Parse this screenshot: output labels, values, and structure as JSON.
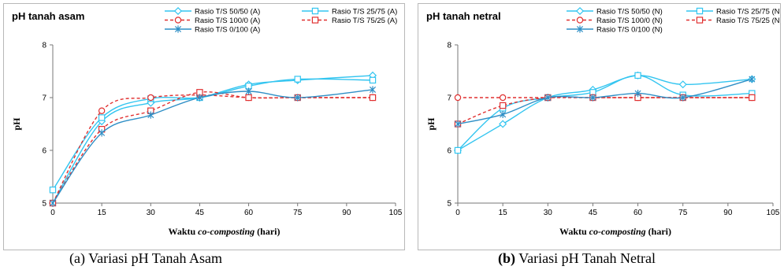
{
  "chart_data": [
    {
      "type": "line",
      "title": "pH tanah asam",
      "caption": "(a) Variasi pH Tanah Asam",
      "xlabel": "Waktu co-composting (hari)",
      "ylabel": "pH",
      "xlim": [
        0,
        105
      ],
      "ylim": [
        5,
        8
      ],
      "xticks": [
        "0",
        "15",
        "30",
        "45",
        "60",
        "75",
        "90",
        "105"
      ],
      "yticks": [
        "5",
        "6",
        "7",
        "8"
      ],
      "grid": false,
      "legend": "top-right",
      "series": [
        {
          "name": "Rasio T/S 50/50 (A)",
          "color": "#33c5f0",
          "dash": false,
          "marker": "diamond",
          "points": [
            [
              0,
              5.0
            ],
            [
              15,
              6.55
            ],
            [
              30,
              6.9
            ],
            [
              45,
              7.0
            ],
            [
              60,
              7.25
            ],
            [
              75,
              7.33
            ],
            [
              98,
              7.42
            ]
          ]
        },
        {
          "name": "Rasio T/S 25/75 (A)",
          "color": "#33c5f0",
          "dash": false,
          "marker": "square",
          "points": [
            [
              0,
              5.25
            ],
            [
              15,
              6.62
            ],
            [
              30,
              6.98
            ],
            [
              45,
              7.0
            ],
            [
              60,
              7.22
            ],
            [
              75,
              7.35
            ],
            [
              98,
              7.33
            ]
          ]
        },
        {
          "name": "Rasio T/S 100/0 (A)",
          "color": "#e03030",
          "dash": true,
          "marker": "circle",
          "points": [
            [
              0,
              5.0
            ],
            [
              15,
              6.75
            ],
            [
              30,
              7.0
            ],
            [
              45,
              7.05
            ],
            [
              60,
              7.0
            ],
            [
              75,
              7.0
            ],
            [
              98,
              7.0
            ]
          ]
        },
        {
          "name": "Rasio T/S 75/25 (A)",
          "color": "#e03030",
          "dash": true,
          "marker": "square",
          "points": [
            [
              0,
              5.0
            ],
            [
              15,
              6.4
            ],
            [
              30,
              6.75
            ],
            [
              45,
              7.1
            ],
            [
              60,
              7.0
            ],
            [
              75,
              7.0
            ],
            [
              98,
              7.0
            ]
          ]
        },
        {
          "name": "Rasio T/S 0/100 (A)",
          "color": "#2f8fc6",
          "dash": false,
          "marker": "star",
          "points": [
            [
              0,
              5.0
            ],
            [
              15,
              6.33
            ],
            [
              30,
              6.67
            ],
            [
              45,
              7.0
            ],
            [
              60,
              7.12
            ],
            [
              75,
              7.0
            ],
            [
              98,
              7.15
            ]
          ]
        }
      ]
    },
    {
      "type": "line",
      "title": "pH tanah netral",
      "caption": "(b) Variasi pH Tanah Netral",
      "xlabel": "Waktu co-composting (hari)",
      "ylabel": "pH",
      "xlim": [
        0,
        105
      ],
      "ylim": [
        5,
        8
      ],
      "xticks": [
        "0",
        "15",
        "30",
        "45",
        "60",
        "75",
        "90",
        "105"
      ],
      "yticks": [
        "5",
        "6",
        "7",
        "8"
      ],
      "grid": false,
      "legend": "top-right",
      "series": [
        {
          "name": "Rasio T/S 50/50 (N)",
          "color": "#33c5f0",
          "dash": false,
          "marker": "diamond",
          "points": [
            [
              0,
              6.0
            ],
            [
              15,
              6.5
            ],
            [
              30,
              7.0
            ],
            [
              45,
              7.15
            ],
            [
              60,
              7.42
            ],
            [
              75,
              7.25
            ],
            [
              98,
              7.35
            ]
          ]
        },
        {
          "name": "Rasio T/S 25/75 (N)",
          "color": "#33c5f0",
          "dash": false,
          "marker": "square",
          "points": [
            [
              0,
              6.0
            ],
            [
              15,
              6.8
            ],
            [
              30,
              7.0
            ],
            [
              45,
              7.1
            ],
            [
              60,
              7.42
            ],
            [
              75,
              7.05
            ],
            [
              98,
              7.08
            ]
          ]
        },
        {
          "name": "Rasio T/S 100/0 (N)",
          "color": "#e03030",
          "dash": true,
          "marker": "circle",
          "points": [
            [
              0,
              7.0
            ],
            [
              15,
              7.0
            ],
            [
              30,
              7.0
            ],
            [
              45,
              7.0
            ],
            [
              60,
              7.0
            ],
            [
              75,
              7.0
            ],
            [
              98,
              7.0
            ]
          ]
        },
        {
          "name": "Rasio T/S 75/25 (N)",
          "color": "#e03030",
          "dash": true,
          "marker": "square",
          "points": [
            [
              0,
              6.5
            ],
            [
              15,
              6.85
            ],
            [
              30,
              7.0
            ],
            [
              45,
              7.0
            ],
            [
              60,
              7.0
            ],
            [
              75,
              7.0
            ],
            [
              98,
              7.0
            ]
          ]
        },
        {
          "name": "Rasio T/S 0/100 (N)",
          "color": "#2f8fc6",
          "dash": false,
          "marker": "star",
          "points": [
            [
              0,
              6.5
            ],
            [
              15,
              6.68
            ],
            [
              30,
              7.0
            ],
            [
              45,
              7.0
            ],
            [
              60,
              7.08
            ],
            [
              75,
              7.0
            ],
            [
              98,
              7.35
            ]
          ]
        }
      ]
    }
  ]
}
